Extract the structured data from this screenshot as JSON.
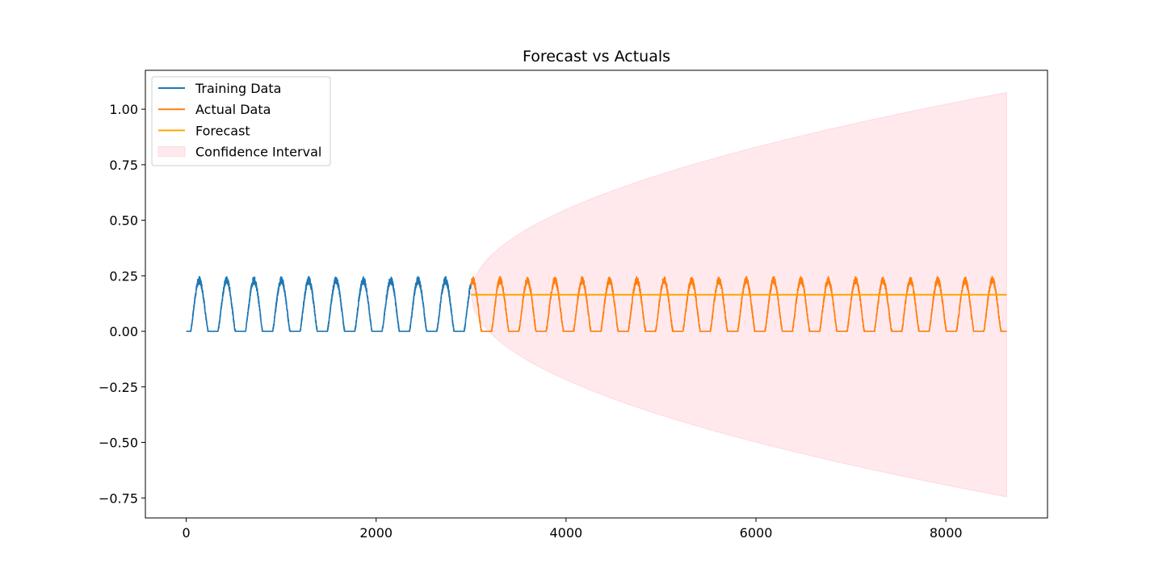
{
  "chart_data": {
    "type": "line",
    "title": "Forecast vs Actuals",
    "xlabel": "",
    "ylabel": "",
    "xlim": [
      -430,
      9070
    ],
    "ylim": [
      -0.84,
      1.175
    ],
    "xticks": [
      0,
      2000,
      4000,
      6000,
      8000
    ],
    "xtick_labels": [
      "0",
      "2000",
      "4000",
      "6000",
      "8000"
    ],
    "yticks": [
      -0.75,
      -0.5,
      -0.25,
      0.0,
      0.25,
      0.5,
      0.75,
      1.0
    ],
    "ytick_labels": [
      "−0.75",
      "−0.50",
      "−0.25",
      "0.00",
      "0.25",
      "0.50",
      "0.75",
      "1.00"
    ],
    "grid": false,
    "legend_position": "top-left",
    "series": [
      {
        "name": "Training Data",
        "color": "#1f77b4",
        "x_range": [
          0,
          3000
        ],
        "pattern": "daily cycles: zero baseline with bell-shaped peaks",
        "period": 288,
        "first_peak_x": 138,
        "peak_value": 0.23,
        "active_half_width": 92,
        "baseline": 0.0
      },
      {
        "name": "Actual Data",
        "color": "#ff7f0e",
        "x_range": [
          3000,
          8640
        ],
        "pattern": "daily cycles: zero baseline with bell-shaped peaks",
        "period": 288,
        "first_peak_x": 3018,
        "peak_value": 0.23,
        "active_half_width": 92,
        "baseline": 0.0
      },
      {
        "name": "Forecast",
        "color": "#ffa500",
        "x": [
          3000,
          8640
        ],
        "y": [
          0.165,
          0.165
        ]
      }
    ],
    "confidence_interval": {
      "name": "Confidence Interval",
      "color": "#ffc0cb",
      "opacity": 0.35,
      "x_range": [
        3000,
        8640
      ],
      "center": 0.165,
      "half_width_at_end": 0.91,
      "shape": "sqrt growth"
    }
  }
}
